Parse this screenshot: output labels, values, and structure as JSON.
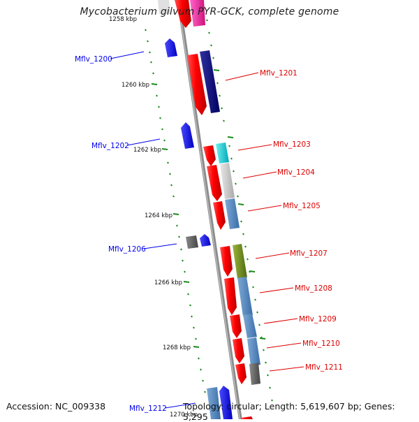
{
  "title": "Mycobacterium gilvum PYR-GCK, complete genome",
  "footer": {
    "accession": "Accession: NC_009338",
    "summary": "Topology: circular; Length: 5,619,607 bp; Genes: 5,295"
  },
  "scale_labels": [
    "1258 kbp",
    "1260 kbp",
    "1262 kbp",
    "1264 kbp",
    "1266 kbp",
    "1268 kbp",
    "1270 kbp"
  ],
  "genes_reverse": [
    {
      "label": "Mflv_1200",
      "color": "#0000ee"
    },
    {
      "label": "Mflv_1202",
      "color": "#0000ee"
    },
    {
      "label": "Mflv_1206",
      "color": "#0000ee"
    },
    {
      "label": "Mflv_1212",
      "color": "#0000ee"
    }
  ],
  "genes_forward": [
    {
      "label": "Mflv_1201",
      "color": "#dd0000"
    },
    {
      "label": "Mflv_1203",
      "color": "#dd0000"
    },
    {
      "label": "Mflv_1204",
      "color": "#dd0000"
    },
    {
      "label": "Mflv_1205",
      "color": "#dd0000"
    },
    {
      "label": "Mflv_1207",
      "color": "#dd0000"
    },
    {
      "label": "Mflv_1208",
      "color": "#dd0000"
    },
    {
      "label": "Mflv_1209",
      "color": "#dd0000"
    },
    {
      "label": "Mflv_1210",
      "color": "#dd0000"
    },
    {
      "label": "Mflv_1211",
      "color": "#dd0000"
    }
  ]
}
